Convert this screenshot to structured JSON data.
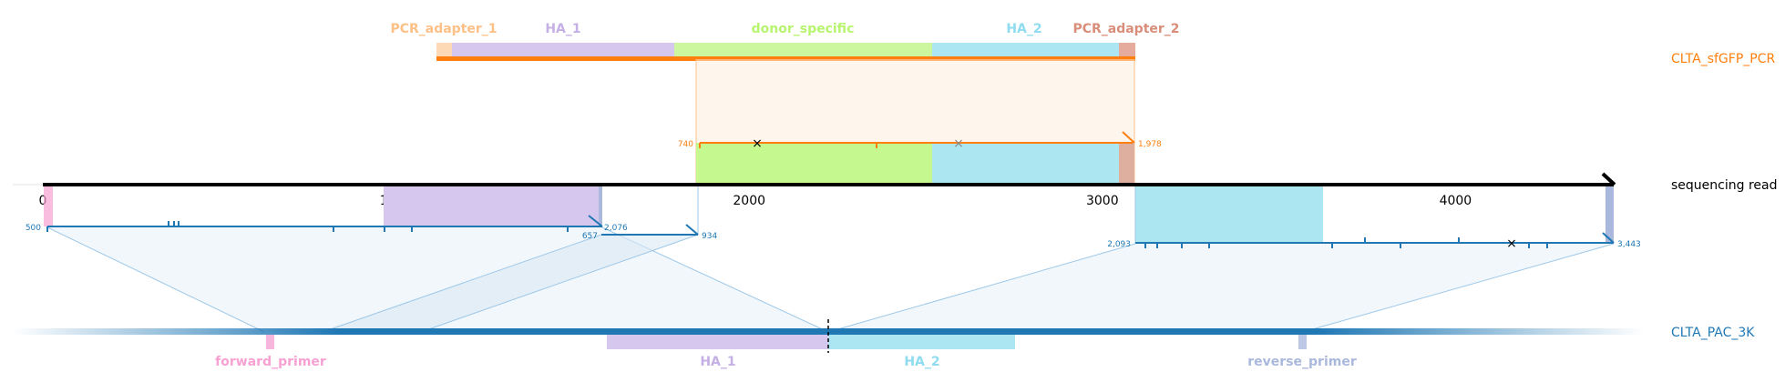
{
  "tracks": {
    "pcr": {
      "label": "CLTA_sfGFP_PCR",
      "color": "#ff7f0e"
    },
    "read": {
      "label": "sequencing read",
      "color": "#000000"
    },
    "ref": {
      "label": "CLTA_PAC_3K",
      "color": "#1f77b4"
    }
  },
  "read_axis": {
    "ticks": [
      "0",
      "1000",
      "2000",
      "3000",
      "4000"
    ],
    "tick_values": [
      0,
      1000,
      2000,
      3000,
      4000
    ],
    "length": 4450
  },
  "pcr_features": [
    {
      "name": "PCR_adapter_1",
      "color": "#fdc086",
      "text_color": "#fdc086"
    },
    {
      "name": "HA_1",
      "color": "#c5b0e6",
      "text_color": "#c5b0e6"
    },
    {
      "name": "donor_specific",
      "color": "#b7f56e",
      "text_color": "#b7f56e"
    },
    {
      "name": "HA_2",
      "color": "#8fdcf0",
      "text_color": "#8fdcf0"
    },
    {
      "name": "PCR_adapter_2",
      "color": "#d98e7a",
      "text_color": "#d98e7a"
    }
  ],
  "ref_features": [
    {
      "name": "forward_primer",
      "color": "#f7a1d3"
    },
    {
      "name": "HA_1",
      "color": "#c5b0e6"
    },
    {
      "name": "HA_2",
      "color": "#8fdcf0"
    },
    {
      "name": "reverse_primer",
      "color": "#a9b8dc"
    }
  ],
  "alignments": {
    "pcr": {
      "start_label": "740",
      "end_label": "1,978"
    },
    "ref_a": {
      "start_label": "500",
      "end_label": "2,076"
    },
    "ref_b": {
      "start_label": "657",
      "end_label": "934"
    },
    "ref_c": {
      "start_label": "2,093",
      "end_label": "3,443"
    }
  }
}
